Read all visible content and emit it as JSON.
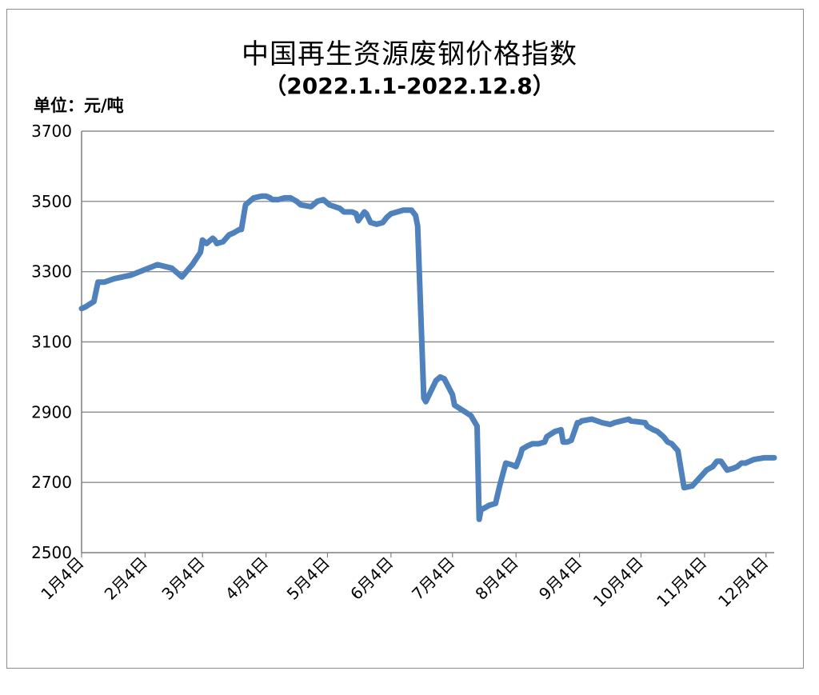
{
  "chart_data": {
    "type": "line",
    "title": "中国再生资源废钢价格指数",
    "subtitle": "（2022.1.1-2022.12.8）",
    "unit_label": "单位：元/吨",
    "xlabel": "",
    "ylabel": "",
    "ylim": [
      2500,
      3700
    ],
    "yticks": [
      2500,
      2700,
      2900,
      3100,
      3300,
      3500,
      3700
    ],
    "x_tick_labels": [
      "1月4日",
      "2月4日",
      "3月4日",
      "4月4日",
      "5月4日",
      "6月4日",
      "7月4日",
      "8月4日",
      "9月4日",
      "10月4日",
      "11月4日",
      "12月4日"
    ],
    "x_tick_dates": [
      "2022-01-04",
      "2022-02-04",
      "2022-03-04",
      "2022-04-04",
      "2022-05-04",
      "2022-06-04",
      "2022-07-04",
      "2022-08-04",
      "2022-09-04",
      "2022-10-04",
      "2022-11-04",
      "2022-12-04"
    ],
    "xlim": [
      "2022-01-04",
      "2022-12-08"
    ],
    "grid": true,
    "legend": "none",
    "line_color": "#4f81bd",
    "series": [
      {
        "name": "",
        "x": [
          "2022-01-04",
          "2022-01-06",
          "2022-01-10",
          "2022-01-12",
          "2022-01-15",
          "2022-01-20",
          "2022-01-28",
          "2022-02-10",
          "2022-02-17",
          "2022-02-19",
          "2022-02-22",
          "2022-02-27",
          "2022-03-03",
          "2022-03-04",
          "2022-03-06",
          "2022-03-09",
          "2022-03-10",
          "2022-03-11",
          "2022-03-14",
          "2022-03-17",
          "2022-03-19",
          "2022-03-22",
          "2022-03-23",
          "2022-03-25",
          "2022-03-29",
          "2022-04-02",
          "2022-04-04",
          "2022-04-06",
          "2022-04-07",
          "2022-04-10",
          "2022-04-13",
          "2022-04-16",
          "2022-04-19",
          "2022-04-21",
          "2022-04-26",
          "2022-04-29",
          "2022-05-02",
          "2022-05-05",
          "2022-05-10",
          "2022-05-12",
          "2022-05-16",
          "2022-05-18",
          "2022-05-19",
          "2022-05-22",
          "2022-05-23",
          "2022-05-25",
          "2022-05-28",
          "2022-05-31",
          "2022-06-02",
          "2022-06-04",
          "2022-06-07",
          "2022-06-10",
          "2022-06-12",
          "2022-06-13",
          "2022-06-14",
          "2022-06-16",
          "2022-06-17",
          "2022-06-20",
          "2022-06-21",
          "2022-06-26",
          "2022-06-28",
          "2022-06-30",
          "2022-07-04",
          "2022-07-05",
          "2022-07-13",
          "2022-07-16",
          "2022-07-17",
          "2022-07-18",
          "2022-07-19",
          "2022-07-22",
          "2022-07-25",
          "2022-07-27",
          "2022-07-30",
          "2022-08-02",
          "2022-08-04",
          "2022-08-05",
          "2022-08-06",
          "2022-08-07",
          "2022-08-10",
          "2022-08-12",
          "2022-08-15",
          "2022-08-18",
          "2022-08-19",
          "2022-08-23",
          "2022-08-26",
          "2022-08-27",
          "2022-08-29",
          "2022-08-31",
          "2022-09-03",
          "2022-09-04",
          "2022-09-05",
          "2022-09-10",
          "2022-09-15",
          "2022-09-19",
          "2022-09-21",
          "2022-09-28",
          "2022-09-29",
          "2022-10-06",
          "2022-10-07",
          "2022-10-10",
          "2022-10-12",
          "2022-10-15",
          "2022-10-17",
          "2022-10-19",
          "2022-10-22",
          "2022-10-25",
          "2022-10-29",
          "2022-11-05",
          "2022-11-08",
          "2022-11-10",
          "2022-11-11",
          "2022-11-12",
          "2022-11-15",
          "2022-11-18",
          "2022-11-20",
          "2022-11-22",
          "2022-11-24",
          "2022-11-26",
          "2022-11-28",
          "2022-12-03",
          "2022-12-07",
          "2022-12-08"
        ],
        "values": [
          3195,
          3200,
          3215,
          3270,
          3270,
          3280,
          3290,
          3320,
          3310,
          3300,
          3285,
          3320,
          3355,
          3390,
          3380,
          3395,
          3390,
          3380,
          3385,
          3405,
          3410,
          3420,
          3420,
          3490,
          3510,
          3515,
          3515,
          3510,
          3505,
          3505,
          3510,
          3510,
          3500,
          3490,
          3485,
          3500,
          3505,
          3490,
          3480,
          3470,
          3470,
          3465,
          3445,
          3470,
          3465,
          3440,
          3435,
          3440,
          3455,
          3465,
          3470,
          3475,
          3475,
          3475,
          3475,
          3460,
          3430,
          2940,
          2930,
          2990,
          3000,
          2995,
          2950,
          2920,
          2890,
          2860,
          2595,
          2625,
          2625,
          2635,
          2640,
          2690,
          2755,
          2750,
          2745,
          2760,
          2775,
          2795,
          2805,
          2810,
          2810,
          2815,
          2830,
          2845,
          2850,
          2815,
          2815,
          2820,
          2870,
          2870,
          2875,
          2880,
          2870,
          2865,
          2870,
          2880,
          2875,
          2870,
          2860,
          2850,
          2845,
          2830,
          2815,
          2810,
          2790,
          2685,
          2690,
          2735,
          2745,
          2760,
          2760,
          2760,
          2735,
          2740,
          2745,
          2755,
          2755,
          2760,
          2765,
          2770,
          2770,
          2770
        ]
      }
    ]
  }
}
